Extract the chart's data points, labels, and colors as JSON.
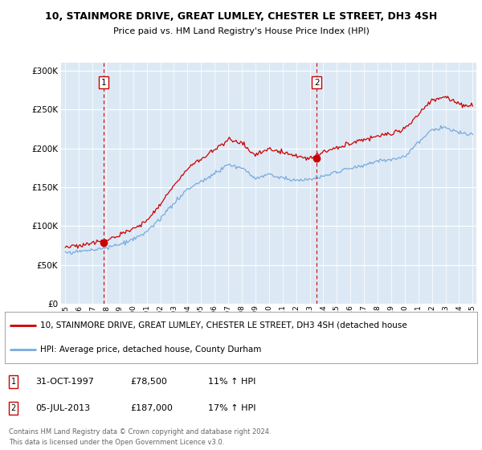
{
  "title1": "10, STAINMORE DRIVE, GREAT LUMLEY, CHESTER LE STREET, DH3 4SH",
  "title2": "Price paid vs. HM Land Registry's House Price Index (HPI)",
  "bg_color": "#dce9f5",
  "sale1_date": 1997.83,
  "sale1_price": 78500,
  "sale2_date": 2013.51,
  "sale2_price": 187000,
  "legend1": "10, STAINMORE DRIVE, GREAT LUMLEY, CHESTER LE STREET, DH3 4SH (detached house",
  "legend2": "HPI: Average price, detached house, County Durham",
  "sale1_text": "31-OCT-1997",
  "sale1_price_str": "£78,500",
  "sale1_hpi": "11% ↑ HPI",
  "sale2_text": "05-JUL-2013",
  "sale2_price_str": "£187,000",
  "sale2_hpi": "17% ↑ HPI",
  "footer": "Contains HM Land Registry data © Crown copyright and database right 2024.\nThis data is licensed under the Open Government Licence v3.0.",
  "hpi_color": "#7aaadd",
  "price_color": "#cc0000",
  "vline_color": "#cc0000",
  "ylim_min": 0,
  "ylim_max": 310000,
  "xlim_min": 1994.7,
  "xlim_max": 2025.3,
  "hpi_anchors_years": [
    1995,
    1996,
    1997,
    1998,
    1999,
    2000,
    2001,
    2002,
    2003,
    2004,
    2005,
    2006,
    2007,
    2008,
    2009,
    2010,
    2011,
    2012,
    2013,
    2014,
    2015,
    2016,
    2017,
    2018,
    2019,
    2020,
    2021,
    2022,
    2023,
    2024,
    2025
  ],
  "hpi_anchors_vals": [
    65000,
    67000,
    70000,
    73000,
    77000,
    83000,
    92000,
    110000,
    130000,
    148000,
    158000,
    168000,
    180000,
    175000,
    162000,
    168000,
    164000,
    161000,
    162000,
    167000,
    172000,
    177000,
    182000,
    186000,
    188000,
    193000,
    210000,
    225000,
    228000,
    220000,
    218000
  ],
  "price_anchors_vals": [
    73000,
    75000,
    79000,
    84000,
    89000,
    97000,
    108000,
    130000,
    153000,
    175000,
    188000,
    200000,
    213000,
    207000,
    192000,
    200000,
    195000,
    191000,
    187000,
    196000,
    202000,
    208000,
    214000,
    218000,
    220000,
    226000,
    245000,
    263000,
    267000,
    258000,
    255000
  ],
  "noise_seed": 12
}
